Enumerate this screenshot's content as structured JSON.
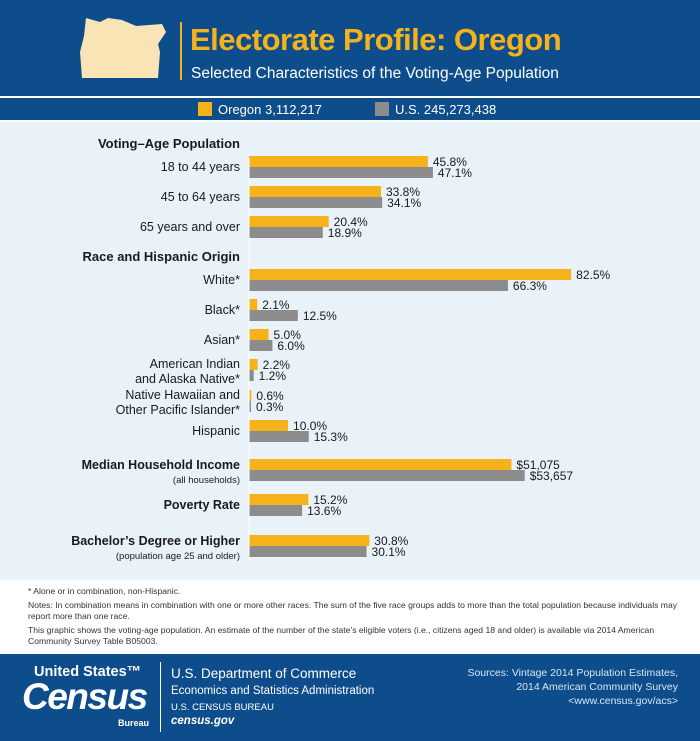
{
  "header": {
    "title": "Electorate Profile: Oregon",
    "subtitle": "Selected Characteristics of the Voting-Age Population",
    "state_icon": "oregon-state-shape"
  },
  "legend": {
    "items": [
      {
        "label": "Oregon 3,112,217",
        "color": "#f5b21b"
      },
      {
        "label": "U.S. 245,273,438",
        "color": "#8c8c8c"
      }
    ]
  },
  "colors": {
    "oregon": "#f5b21b",
    "us": "#8c8c8c",
    "brand_blue": "#0e4d8c",
    "plot_bg": "#e9f2f9"
  },
  "chart_data": {
    "type": "bar",
    "orientation": "horizontal",
    "series": [
      {
        "name": "Oregon 3,112,217"
      },
      {
        "name": "U.S. 245,273,438"
      }
    ],
    "sections": [
      {
        "title": "Voting–Age Population",
        "rows": [
          {
            "label": [
              "18 to 44 years"
            ],
            "oregon": 45.8,
            "us": 47.1,
            "oregon_label": "45.8%",
            "us_label": "47.1%"
          },
          {
            "label": [
              "45 to 64 years"
            ],
            "oregon": 33.8,
            "us": 34.1,
            "oregon_label": "33.8%",
            "us_label": "34.1%"
          },
          {
            "label": [
              "65 years and over"
            ],
            "oregon": 20.4,
            "us": 18.9,
            "oregon_label": "20.4%",
            "us_label": "18.9%"
          }
        ]
      },
      {
        "title": "Race and Hispanic Origin",
        "rows": [
          {
            "label": [
              "White*"
            ],
            "oregon": 82.5,
            "us": 66.3,
            "oregon_label": "82.5%",
            "us_label": "66.3%"
          },
          {
            "label": [
              "Black*"
            ],
            "oregon": 2.1,
            "us": 12.5,
            "oregon_label": "2.1%",
            "us_label": "12.5%"
          },
          {
            "label": [
              "Asian*"
            ],
            "oregon": 5.0,
            "us": 6.0,
            "oregon_label": "5.0%",
            "us_label": "6.0%"
          },
          {
            "label": [
              "American Indian",
              "and Alaska Native*"
            ],
            "oregon": 2.2,
            "us": 1.2,
            "oregon_label": "2.2%",
            "us_label": "1.2%"
          },
          {
            "label": [
              "Native Hawaiian and",
              "Other Pacific Islander*"
            ],
            "oregon": 0.6,
            "us": 0.3,
            "oregon_label": "0.6%",
            "us_label": "0.3%"
          },
          {
            "label": [
              "Hispanic"
            ],
            "oregon": 10.0,
            "us": 15.3,
            "oregon_label": "10.0%",
            "us_label": "15.3%"
          }
        ]
      },
      {
        "title": "",
        "rows": [
          {
            "label": [
              "Median Household Income",
              "(all households)"
            ],
            "bold": true,
            "oregon": 51075,
            "us": 53657,
            "oregon_label": "$51,075",
            "us_label": "$53,657",
            "scale_max": 76000
          }
        ]
      },
      {
        "title": "",
        "rows": [
          {
            "label": [
              "Poverty Rate"
            ],
            "bold": true,
            "oregon": 15.2,
            "us": 13.6,
            "oregon_label": "15.2%",
            "us_label": "13.6%"
          }
        ]
      },
      {
        "title": "",
        "rows": [
          {
            "label": [
              "Bachelor’s Degree or Higher",
              "(population age 25 and older)"
            ],
            "bold": true,
            "oregon": 30.8,
            "us": 30.1,
            "oregon_label": "30.8%",
            "us_label": "30.1%"
          }
        ]
      }
    ]
  },
  "footnotes": {
    "asterisk": "* Alone or in combination, non-Hispanic.",
    "notes": "Notes: In combination means in combination with one or more other races. The sum of the five race groups adds to more than the total population because individuals may report more than one race.",
    "graphic": "This graphic shows the voting-age population. An estimate of the number of the state’s eligible voters (i.e., citizens aged 18 and older) is available via 2014 American Community Survey Table B05003."
  },
  "footer": {
    "logo_top": "United States™",
    "logo_main": "Census",
    "logo_bottom": "Bureau",
    "dept": "U.S. Department of Commerce",
    "esa": "Economics and Statistics Administration",
    "bureau": "U.S. CENSUS BUREAU",
    "site": "census.gov",
    "sources_1": "Sources: Vintage 2014 Population Estimates,",
    "sources_2": "2014 American Community Survey",
    "sources_3": "<www.census.gov/acs>"
  }
}
